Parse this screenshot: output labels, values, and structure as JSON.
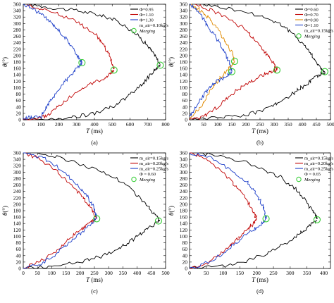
{
  "figure": {
    "panels": [
      {
        "id": "a",
        "sublabel": "(a)",
        "xlabel_var": "T",
        "xlabel_unit": " (ms)",
        "ylabel_var": "θ",
        "ylabel_unit": "(°)",
        "legend_extra": "m_air=0.10kg/s",
        "merging_label": "Merging"
      },
      {
        "id": "b",
        "sublabel": "(b)",
        "xlabel_var": "T",
        "xlabel_unit": " (ms)",
        "ylabel_var": "θ",
        "ylabel_unit": "(°)",
        "legend_extra": "m_air=0.15kg/s",
        "merging_label": "Merging"
      },
      {
        "id": "c",
        "sublabel": "(c)",
        "xlabel_var": "T",
        "xlabel_unit": " (ms)",
        "ylabel_var": "θ",
        "ylabel_unit": "(°)",
        "legend_extra": "Φ = 0.60",
        "merging_label": "Merging"
      },
      {
        "id": "d",
        "sublabel": "(d)",
        "xlabel_var": "T",
        "xlabel_unit": " (ms)",
        "ylabel_var": "θ",
        "ylabel_unit": "(°)",
        "legend_extra": "Φ = 0.65",
        "merging_label": "Merging"
      }
    ]
  },
  "chart_data": [
    {
      "type": "line",
      "panel": "a",
      "xlabel": "T (ms)",
      "ylabel": "θ(°)",
      "xlim": [
        0,
        800
      ],
      "ylim": [
        0,
        360
      ],
      "xticks": [
        0,
        100,
        200,
        300,
        400,
        500,
        600,
        700,
        800
      ],
      "yticks": [
        0,
        20,
        40,
        60,
        80,
        100,
        120,
        140,
        160,
        180,
        200,
        220,
        240,
        260,
        280,
        300,
        320,
        340,
        360
      ],
      "legend_position": "top-right",
      "series": [
        {
          "name": "Φ=0.95",
          "color": "#000000",
          "upper": [
            [
              30,
              360
            ],
            [
              150,
              350
            ],
            [
              300,
              340
            ],
            [
              400,
              330
            ],
            [
              500,
              315
            ],
            [
              580,
              290
            ],
            [
              650,
              260
            ],
            [
              700,
              230
            ],
            [
              740,
              200
            ],
            [
              770,
              172
            ]
          ],
          "lower": [
            [
              0,
              0
            ],
            [
              200,
              3
            ],
            [
              300,
              10
            ],
            [
              400,
              20
            ],
            [
              500,
              40
            ],
            [
              580,
              70
            ],
            [
              650,
              100
            ],
            [
              700,
              130
            ],
            [
              740,
              155
            ],
            [
              770,
              170
            ]
          ]
        },
        {
          "name": "Φ=1.10",
          "color": "#c00000",
          "upper": [
            [
              20,
              360
            ],
            [
              100,
              345
            ],
            [
              200,
              330
            ],
            [
              300,
              305
            ],
            [
              400,
              270
            ],
            [
              450,
              235
            ],
            [
              480,
              205
            ],
            [
              500,
              175
            ],
            [
              510,
              158
            ]
          ],
          "lower": [
            [
              0,
              0
            ],
            [
              100,
              5
            ],
            [
              150,
              20
            ],
            [
              200,
              45
            ],
            [
              300,
              85
            ],
            [
              380,
              110
            ],
            [
              450,
              130
            ],
            [
              490,
              145
            ],
            [
              510,
              155
            ]
          ]
        },
        {
          "name": "Φ=1.30",
          "color": "#1a3cc8",
          "upper": [
            [
              0,
              360
            ],
            [
              60,
              345
            ],
            [
              120,
              320
            ],
            [
              180,
              290
            ],
            [
              230,
              260
            ],
            [
              270,
              230
            ],
            [
              300,
              205
            ],
            [
              320,
              185
            ],
            [
              330,
              178
            ]
          ],
          "lower": [
            [
              0,
              5
            ],
            [
              50,
              8
            ],
            [
              100,
              10
            ],
            [
              130,
              40
            ],
            [
              170,
              70
            ],
            [
              220,
              110
            ],
            [
              270,
              140
            ],
            [
              310,
              165
            ],
            [
              330,
              178
            ]
          ]
        }
      ],
      "merging_points": [
        [
          330,
          178
        ],
        [
          510,
          155
        ],
        [
          770,
          170
        ]
      ]
    },
    {
      "type": "line",
      "panel": "b",
      "xlabel": "T (ms)",
      "ylabel": "θ(°)",
      "xlim": [
        0,
        500
      ],
      "ylim": [
        0,
        360
      ],
      "xticks": [
        0,
        50,
        100,
        150,
        200,
        250,
        300,
        350,
        400,
        450,
        500
      ],
      "yticks": [
        0,
        20,
        40,
        60,
        80,
        100,
        120,
        140,
        160,
        180,
        200,
        220,
        240,
        260,
        280,
        300,
        320,
        340,
        360
      ],
      "legend_position": "top-right",
      "series": [
        {
          "name": "Φ=0.60",
          "color": "#000000",
          "upper": [
            [
              50,
              360
            ],
            [
              150,
              345
            ],
            [
              250,
              325
            ],
            [
              320,
              300
            ],
            [
              370,
              265
            ],
            [
              410,
              230
            ],
            [
              440,
              195
            ],
            [
              460,
              165
            ],
            [
              480,
              150
            ]
          ],
          "lower": [
            [
              0,
              0
            ],
            [
              100,
              5
            ],
            [
              200,
              15
            ],
            [
              280,
              35
            ],
            [
              330,
              60
            ],
            [
              380,
              90
            ],
            [
              420,
              115
            ],
            [
              460,
              140
            ],
            [
              480,
              150
            ]
          ]
        },
        {
          "name": "Φ=0.70",
          "color": "#c00000",
          "upper": [
            [
              20,
              360
            ],
            [
              80,
              340
            ],
            [
              150,
              310
            ],
            [
              200,
              280
            ],
            [
              240,
              240
            ],
            [
              270,
              210
            ],
            [
              300,
              175
            ],
            [
              310,
              155
            ]
          ],
          "lower": [
            [
              0,
              0
            ],
            [
              50,
              10
            ],
            [
              100,
              40
            ],
            [
              150,
              80
            ],
            [
              200,
              110
            ],
            [
              250,
              135
            ],
            [
              290,
              150
            ],
            [
              310,
              155
            ]
          ]
        },
        {
          "name": "Φ=0.90",
          "color": "#e08a00",
          "upper": [
            [
              0,
              360
            ],
            [
              40,
              340
            ],
            [
              80,
              305
            ],
            [
              110,
              270
            ],
            [
              130,
              240
            ],
            [
              150,
              210
            ],
            [
              160,
              182
            ]
          ],
          "lower": [
            [
              0,
              5
            ],
            [
              40,
              40
            ],
            [
              80,
              100
            ],
            [
              110,
              130
            ],
            [
              140,
              160
            ],
            [
              160,
              182
            ]
          ]
        },
        {
          "name": "Φ=1.10",
          "color": "#1a3cc8",
          "upper": [
            [
              0,
              360
            ],
            [
              30,
              340
            ],
            [
              60,
              300
            ],
            [
              90,
              260
            ],
            [
              120,
              220
            ],
            [
              140,
              180
            ],
            [
              150,
              150
            ]
          ],
          "lower": [
            [
              0,
              10
            ],
            [
              30,
              50
            ],
            [
              60,
              90
            ],
            [
              90,
              115
            ],
            [
              120,
              130
            ],
            [
              150,
              150
            ]
          ]
        }
      ],
      "merging_points": [
        [
          160,
          182
        ],
        [
          150,
          150
        ],
        [
          310,
          155
        ],
        [
          480,
          150
        ]
      ]
    },
    {
      "type": "line",
      "panel": "c",
      "xlabel": "T (ms)",
      "ylabel": "θ(°)",
      "xlim": [
        0,
        500
      ],
      "ylim": [
        0,
        360
      ],
      "xticks": [
        0,
        50,
        100,
        150,
        200,
        250,
        300,
        350,
        400,
        450,
        500
      ],
      "yticks": [
        0,
        20,
        40,
        60,
        80,
        100,
        120,
        140,
        160,
        180,
        200,
        220,
        240,
        260,
        280,
        300,
        320,
        340,
        360
      ],
      "legend_position": "top-right",
      "series": [
        {
          "name": "m_air=0.15kg/s",
          "color": "#000000",
          "upper": [
            [
              50,
              360
            ],
            [
              150,
              340
            ],
            [
              250,
              310
            ],
            [
              330,
              280
            ],
            [
              390,
              240
            ],
            [
              430,
              200
            ],
            [
              460,
              170
            ],
            [
              480,
              150
            ]
          ],
          "lower": [
            [
              0,
              0
            ],
            [
              100,
              5
            ],
            [
              200,
              20
            ],
            [
              280,
              40
            ],
            [
              350,
              70
            ],
            [
              400,
              100
            ],
            [
              440,
              125
            ],
            [
              480,
              150
            ]
          ]
        },
        {
          "name": "m_air=0.20kg/s",
          "color": "#c00000",
          "upper": [
            [
              0,
              360
            ],
            [
              60,
              340
            ],
            [
              120,
              300
            ],
            [
              170,
              260
            ],
            [
              210,
              220
            ],
            [
              240,
              185
            ],
            [
              258,
              155
            ]
          ],
          "lower": [
            [
              0,
              0
            ],
            [
              60,
              20
            ],
            [
              120,
              60
            ],
            [
              170,
              100
            ],
            [
              210,
              125
            ],
            [
              240,
              145
            ],
            [
              258,
              155
            ]
          ]
        },
        {
          "name": "m_air=0.25kg/s",
          "color": "#1a3cc8",
          "upper": [
            [
              0,
              360
            ],
            [
              70,
              345
            ],
            [
              130,
              310
            ],
            [
              180,
              270
            ],
            [
              220,
              230
            ],
            [
              245,
              195
            ],
            [
              258,
              158
            ]
          ],
          "lower": [
            [
              0,
              0
            ],
            [
              50,
              10
            ],
            [
              110,
              40
            ],
            [
              160,
              80
            ],
            [
              200,
              110
            ],
            [
              235,
              135
            ],
            [
              258,
              158
            ]
          ]
        }
      ],
      "merging_points": [
        [
          258,
          155
        ],
        [
          475,
          148
        ]
      ]
    },
    {
      "type": "line",
      "panel": "d",
      "xlabel": "T (ms)",
      "ylabel": "θ(°)",
      "xlim": [
        0,
        420
      ],
      "ylim": [
        0,
        360
      ],
      "xticks": [
        0,
        50,
        100,
        150,
        200,
        250,
        300,
        350,
        400
      ],
      "yticks": [
        0,
        20,
        40,
        60,
        80,
        100,
        120,
        140,
        160,
        180,
        200,
        220,
        240,
        260,
        280,
        300,
        320,
        340,
        360
      ],
      "legend_position": "top-right",
      "series": [
        {
          "name": "m_air=0.15kg/s",
          "color": "#000000",
          "upper": [
            [
              30,
              360
            ],
            [
              120,
              345
            ],
            [
              200,
              320
            ],
            [
              270,
              285
            ],
            [
              320,
              245
            ],
            [
              350,
              205
            ],
            [
              370,
              175
            ],
            [
              380,
              155
            ]
          ],
          "lower": [
            [
              0,
              0
            ],
            [
              80,
              5
            ],
            [
              160,
              20
            ],
            [
              230,
              45
            ],
            [
              290,
              80
            ],
            [
              330,
              110
            ],
            [
              360,
              135
            ],
            [
              380,
              150
            ]
          ]
        },
        {
          "name": "m_air=0.20kg/s",
          "color": "#c00000",
          "upper": [
            [
              0,
              360
            ],
            [
              50,
              340
            ],
            [
              100,
              300
            ],
            [
              140,
              255
            ],
            [
              170,
              215
            ],
            [
              190,
              180
            ],
            [
              200,
              155
            ]
          ],
          "lower": [
            [
              0,
              0
            ],
            [
              50,
              15
            ],
            [
              100,
              50
            ],
            [
              140,
              90
            ],
            [
              170,
              120
            ],
            [
              190,
              140
            ],
            [
              200,
              155
            ]
          ]
        },
        {
          "name": "m_air=0.25kg/s",
          "color": "#1a3cc8",
          "upper": [
            [
              0,
              360
            ],
            [
              60,
              345
            ],
            [
              120,
              310
            ],
            [
              170,
              270
            ],
            [
              200,
              230
            ],
            [
              220,
              190
            ],
            [
              228,
              155
            ]
          ],
          "lower": [
            [
              0,
              0
            ],
            [
              60,
              20
            ],
            [
              110,
              55
            ],
            [
              150,
              90
            ],
            [
              190,
              120
            ],
            [
              215,
              140
            ],
            [
              228,
              155
            ]
          ]
        }
      ],
      "merging_points": [
        [
          228,
          155
        ],
        [
          380,
          152
        ]
      ]
    }
  ]
}
